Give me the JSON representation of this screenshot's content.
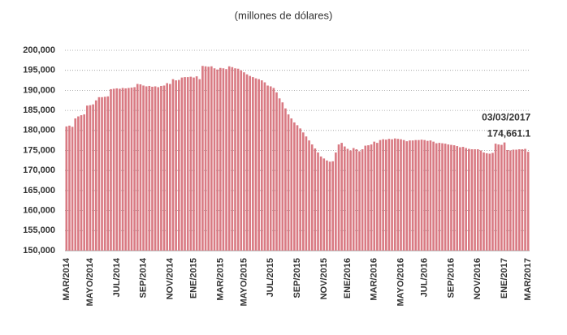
{
  "chart_data": {
    "type": "bar",
    "title": "(millones de dólares)",
    "annotation": "03/03/2017",
    "color": "#d97a83",
    "grid": true,
    "ylim": [
      150000,
      200000
    ],
    "yticks": [
      {
        "value": 150000,
        "label": "150,000"
      },
      {
        "value": 155000,
        "label": "155,000"
      },
      {
        "value": 160000,
        "label": "160,000"
      },
      {
        "value": 165000,
        "label": "165,000"
      },
      {
        "value": 170000,
        "label": "170,000"
      },
      {
        "value": 175000,
        "label": "175,000"
      },
      {
        "value": 180000,
        "label": "180,000"
      },
      {
        "value": 185000,
        "label": "185,000"
      },
      {
        "value": 190000,
        "label": "190,000"
      },
      {
        "value": 195000,
        "label": "195,000"
      },
      {
        "value": 200000,
        "label": "200,000"
      }
    ],
    "categories": [
      "MAR/2014",
      null,
      null,
      null,
      null,
      null,
      null,
      null,
      "MAYO/2014",
      null,
      null,
      null,
      null,
      null,
      null,
      null,
      null,
      "JUL/2014",
      null,
      null,
      null,
      null,
      null,
      null,
      null,
      null,
      "SEP/2014",
      null,
      null,
      null,
      null,
      null,
      null,
      null,
      null,
      "NOV/2014",
      null,
      null,
      null,
      null,
      null,
      null,
      null,
      "ENE/2015",
      null,
      null,
      null,
      null,
      null,
      null,
      null,
      null,
      "MAR/2015",
      null,
      null,
      null,
      null,
      null,
      null,
      null,
      "MAYO/2015",
      null,
      null,
      null,
      null,
      null,
      null,
      null,
      null,
      "JUL/2015",
      null,
      null,
      null,
      null,
      null,
      null,
      null,
      null,
      "SEP/2015",
      null,
      null,
      null,
      null,
      null,
      null,
      null,
      null,
      "NOV/2015",
      null,
      null,
      null,
      null,
      null,
      null,
      null,
      "ENE/2016",
      null,
      null,
      null,
      null,
      null,
      null,
      null,
      null,
      "MAR/2016",
      null,
      null,
      null,
      null,
      null,
      null,
      null,
      null,
      "MAYO/2016",
      null,
      null,
      null,
      null,
      null,
      null,
      null,
      "JUL/2016",
      null,
      null,
      null,
      null,
      null,
      null,
      null,
      null,
      "SEP/2016",
      null,
      null,
      null,
      null,
      null,
      null,
      null,
      null,
      "NOV/2016",
      null,
      null,
      null,
      null,
      null,
      null,
      null,
      null,
      "ENE/2017",
      null,
      null,
      null,
      null,
      null,
      null,
      null,
      "MAR/2017"
    ],
    "values": [
      181000,
      181200,
      180900,
      183000,
      183500,
      183800,
      184000,
      186200,
      186300,
      186500,
      187500,
      188300,
      188300,
      188400,
      188500,
      190300,
      190400,
      190500,
      190400,
      190600,
      190500,
      190600,
      190700,
      190800,
      191600,
      191500,
      191200,
      191000,
      191100,
      190900,
      191000,
      190800,
      191100,
      191200,
      191800,
      191600,
      192800,
      192500,
      192600,
      193200,
      193300,
      193300,
      193400,
      193200,
      193500,
      192800,
      196100,
      196000,
      195900,
      196000,
      195500,
      195200,
      195600,
      195500,
      195300,
      196000,
      195800,
      195500,
      195400,
      195000,
      194500,
      194000,
      193600,
      193300,
      193000,
      192800,
      192500,
      192000,
      191200,
      191000,
      190600,
      189500,
      188000,
      187000,
      185500,
      184000,
      183000,
      182000,
      181300,
      180500,
      179500,
      178500,
      177500,
      176500,
      175500,
      174500,
      173500,
      173000,
      172500,
      172200,
      172300,
      174500,
      176500,
      176900,
      176000,
      175400,
      175000,
      175600,
      175300,
      174800,
      175300,
      176200,
      176300,
      176500,
      177200,
      176900,
      177600,
      177800,
      177700,
      177900,
      177800,
      178000,
      177900,
      177800,
      177600,
      177300,
      177500,
      177500,
      177600,
      177600,
      177700,
      177600,
      177400,
      177500,
      177200,
      176800,
      176900,
      176800,
      176700,
      176500,
      176400,
      176300,
      176100,
      175800,
      175900,
      175600,
      175400,
      175300,
      175300,
      175300,
      175000,
      174500,
      174300,
      174200,
      174400,
      176700,
      176500,
      176400,
      177000,
      175100,
      175000,
      175200,
      175200,
      175300,
      175300,
      175400,
      174661.1
    ],
    "value_labels": [
      null,
      null,
      null,
      null,
      null,
      null,
      null,
      null,
      null,
      null,
      null,
      null,
      null,
      null,
      null,
      null,
      null,
      null,
      null,
      null,
      null,
      null,
      null,
      null,
      null,
      null,
      null,
      null,
      null,
      null,
      null,
      null,
      null,
      null,
      null,
      null,
      null,
      null,
      null,
      null,
      null,
      null,
      null,
      null,
      null,
      null,
      null,
      null,
      null,
      null,
      null,
      null,
      null,
      null,
      null,
      null,
      null,
      null,
      null,
      null,
      null,
      null,
      null,
      null,
      null,
      null,
      null,
      null,
      null,
      null,
      null,
      null,
      null,
      null,
      null,
      null,
      null,
      null,
      null,
      null,
      null,
      null,
      null,
      null,
      null,
      null,
      null,
      null,
      null,
      null,
      null,
      null,
      null,
      null,
      null,
      null,
      null,
      null,
      null,
      null,
      null,
      null,
      null,
      null,
      null,
      null,
      null,
      null,
      null,
      null,
      null,
      null,
      null,
      null,
      null,
      null,
      null,
      null,
      null,
      null,
      null,
      null,
      null,
      null,
      null,
      null,
      null,
      null,
      null,
      null,
      null,
      null,
      null,
      null,
      null,
      null,
      null,
      null,
      null,
      null,
      null,
      null,
      null,
      null,
      null,
      null,
      null,
      null,
      null,
      null,
      null,
      null,
      null,
      null,
      null,
      null,
      "174,661.1"
    ]
  }
}
